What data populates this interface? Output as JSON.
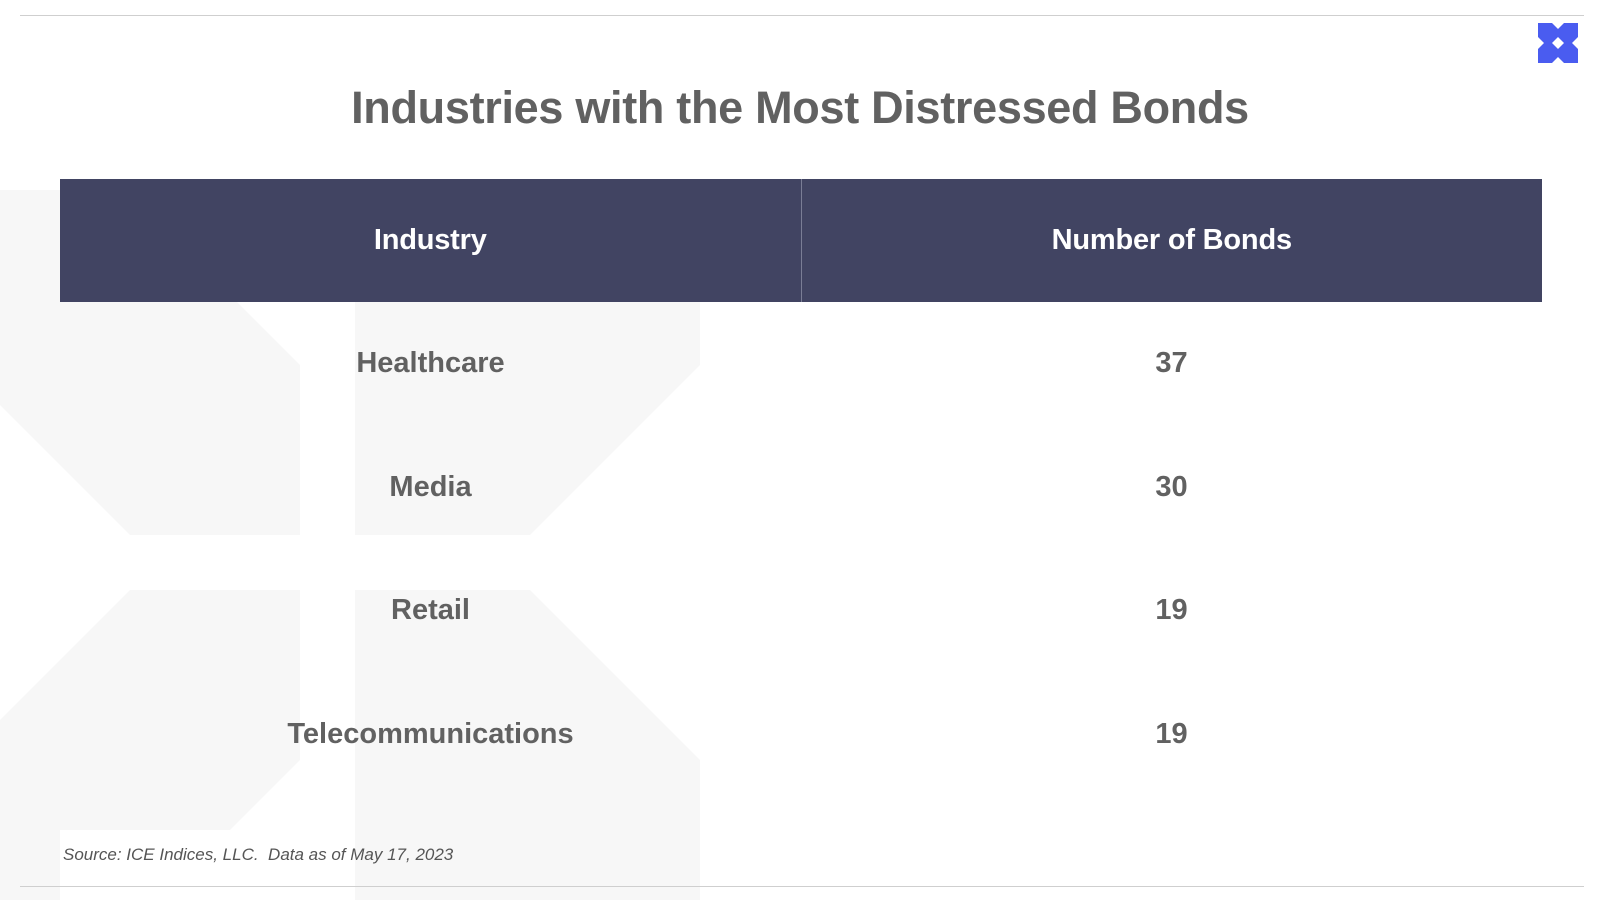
{
  "title": "Industries with the Most Distressed Bonds",
  "colors": {
    "header_bg": "#414462",
    "header_text": "#ffffff",
    "body_text": "#616161",
    "logo": "#4a5cf0",
    "watermark": "#f7f7f7"
  },
  "icons": {
    "logo": "x-cross-logo-icon",
    "watermark": "x-cross-watermark"
  },
  "chart_data": {
    "type": "table",
    "title": "Industries with the Most Distressed Bonds",
    "columns": [
      "Industry",
      "Number of Bonds"
    ],
    "rows": [
      [
        "Healthcare",
        37
      ],
      [
        "Media",
        30
      ],
      [
        "Retail",
        19
      ],
      [
        "Telecommunications",
        19
      ]
    ]
  },
  "source": "Source: ICE Indices, LLC.  Data as of May 17, 2023"
}
